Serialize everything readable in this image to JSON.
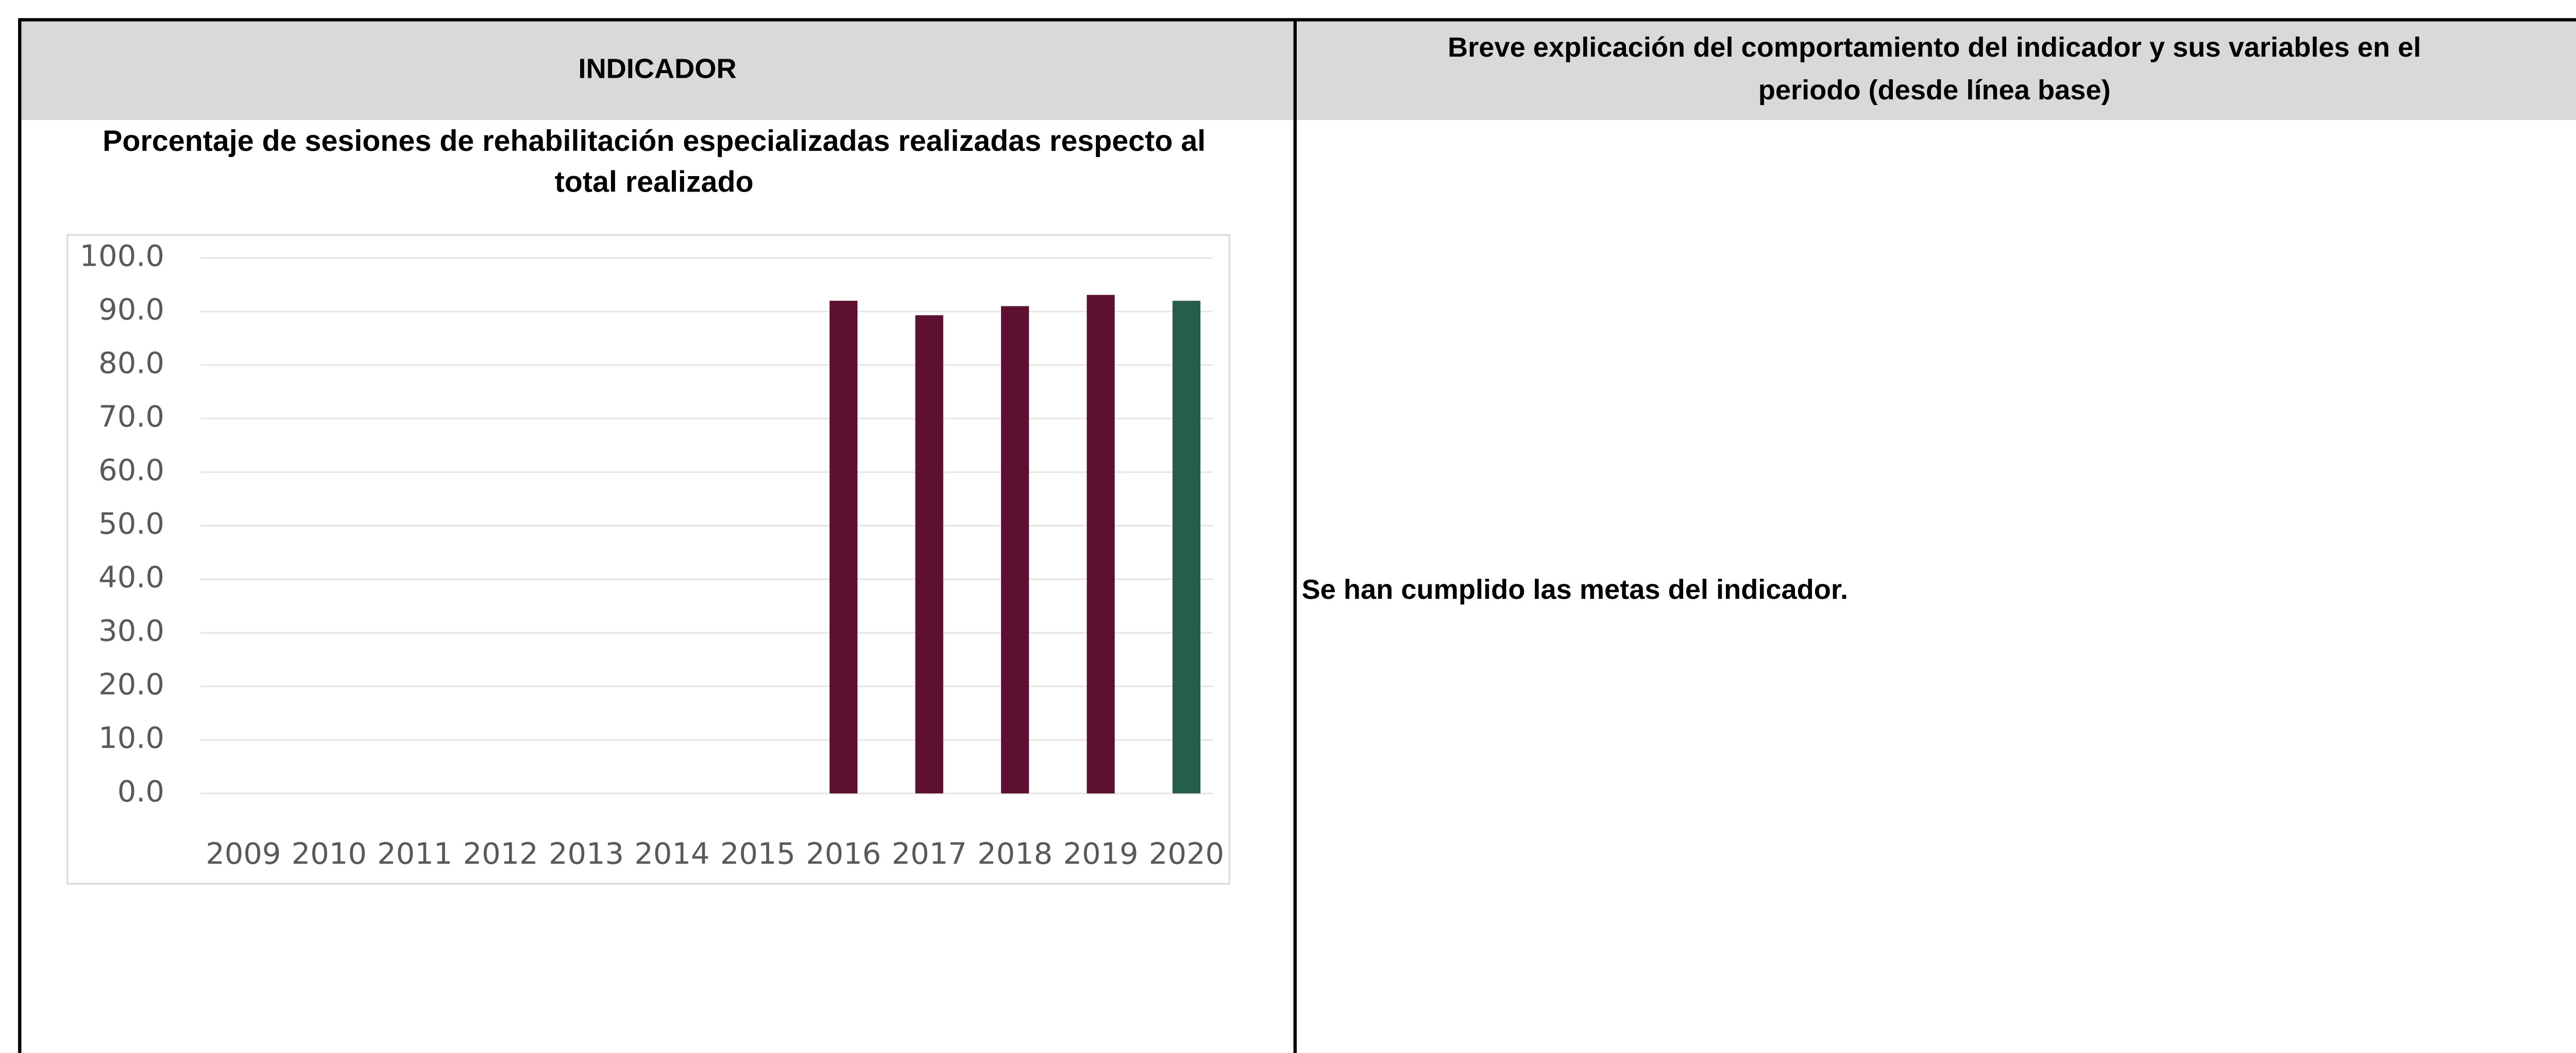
{
  "table": {
    "indicator_header": "INDICADOR",
    "explanation_header": [
      "Breve explicación del comportamiento del indicador y sus variables en el",
      "periodo (desde línea base)"
    ],
    "explanation": "Se han cumplido las metas del indicador."
  },
  "chart_data": {
    "type": "bar",
    "title": [
      "Porcentaje de sesiones de rehabilitación especializadas realizadas respecto al",
      "total realizado"
    ],
    "categories": [
      "2009",
      "2010",
      "2011",
      "2012",
      "2013",
      "2014",
      "2015",
      "2016",
      "2017",
      "2018",
      "2019",
      "2020"
    ],
    "values": [
      null,
      null,
      null,
      null,
      null,
      null,
      null,
      92,
      89.3,
      91,
      93.1,
      92
    ],
    "colors": [
      "#5e1030",
      "#5e1030",
      "#5e1030",
      "#5e1030",
      "#5e1030",
      "#5e1030",
      "#5e1030",
      "#5e1030",
      "#5e1030",
      "#5e1030",
      "#5e1030",
      "#255e4b"
    ],
    "ylim": [
      0,
      100
    ],
    "yticks": [
      {
        "value": 0,
        "label": "0.0"
      },
      {
        "value": 10,
        "label": "10.0"
      },
      {
        "value": 20,
        "label": "20.0"
      },
      {
        "value": 30,
        "label": "30.0"
      },
      {
        "value": 40,
        "label": "40.0"
      },
      {
        "value": 50,
        "label": "50.0"
      },
      {
        "value": 60,
        "label": "60.0"
      },
      {
        "value": 70,
        "label": "70.0"
      },
      {
        "value": 80,
        "label": "80.0"
      },
      {
        "value": 90,
        "label": "90.0"
      },
      {
        "value": 100,
        "label": "100.0"
      }
    ],
    "grid": true
  }
}
